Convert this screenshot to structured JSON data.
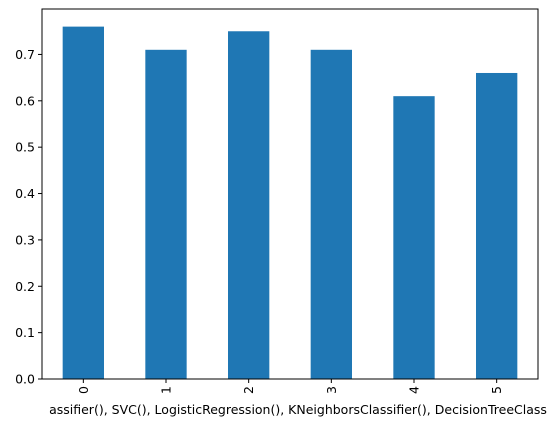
{
  "chart_data": {
    "type": "bar",
    "categories": [
      "0",
      "1",
      "2",
      "3",
      "4",
      "5"
    ],
    "values": [
      0.76,
      0.71,
      0.75,
      0.71,
      0.61,
      0.66
    ],
    "title": "",
    "xlabel": "assifier(), SVC(), LogisticRegression(), KNeighborsClassifier(), DecisionTreeClass",
    "ylabel": "",
    "ylim": [
      0,
      0.798
    ],
    "yticks": [
      "0.0",
      "0.1",
      "0.2",
      "0.3",
      "0.4",
      "0.5",
      "0.6",
      "0.7"
    ],
    "bar_color": "#1f77b4",
    "grid": false,
    "legend": false
  }
}
